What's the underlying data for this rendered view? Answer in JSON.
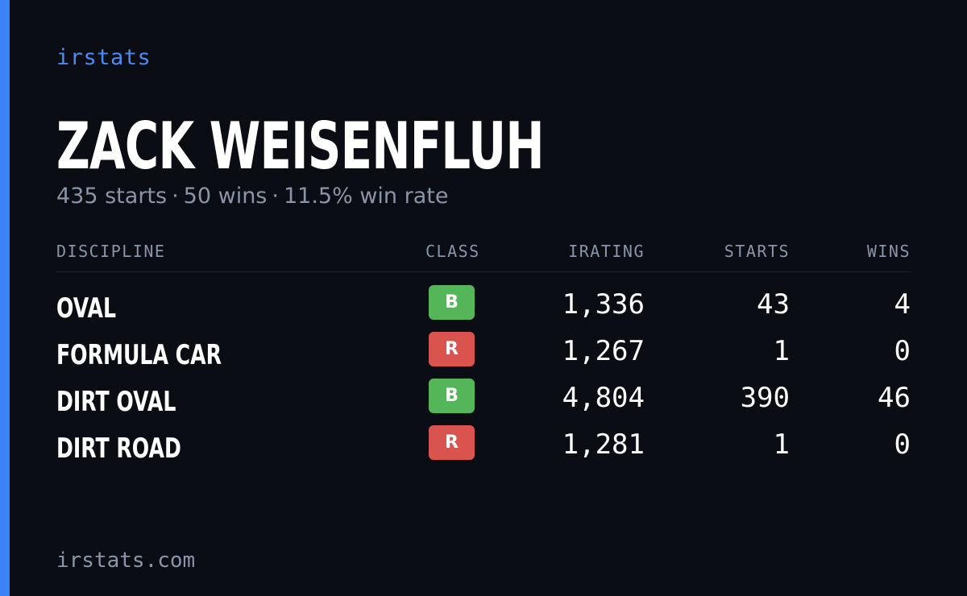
{
  "brand": "irstats",
  "player": {
    "name": "ZACK WEISENFLUH",
    "starts_text": "435 starts",
    "wins_text": "50 wins",
    "winrate_text": "11.5% win rate",
    "separator": "·"
  },
  "table": {
    "headers": {
      "discipline": "DISCIPLINE",
      "class": "CLASS",
      "irating": "IRATING",
      "starts": "STARTS",
      "wins": "WINS"
    },
    "rows": [
      {
        "discipline": "OVAL",
        "class": "B",
        "irating": "1,336",
        "starts": "43",
        "wins": "4"
      },
      {
        "discipline": "FORMULA CAR",
        "class": "R",
        "irating": "1,267",
        "starts": "1",
        "wins": "0"
      },
      {
        "discipline": "DIRT OVAL",
        "class": "B",
        "irating": "4,804",
        "starts": "390",
        "wins": "46"
      },
      {
        "discipline": "DIRT ROAD",
        "class": "R",
        "irating": "1,281",
        "starts": "1",
        "wins": "0"
      }
    ]
  },
  "class_colors": {
    "B": "#55b559",
    "R": "#d9534f"
  },
  "accent_color": "#3b82f6",
  "footer": "irstats.com"
}
